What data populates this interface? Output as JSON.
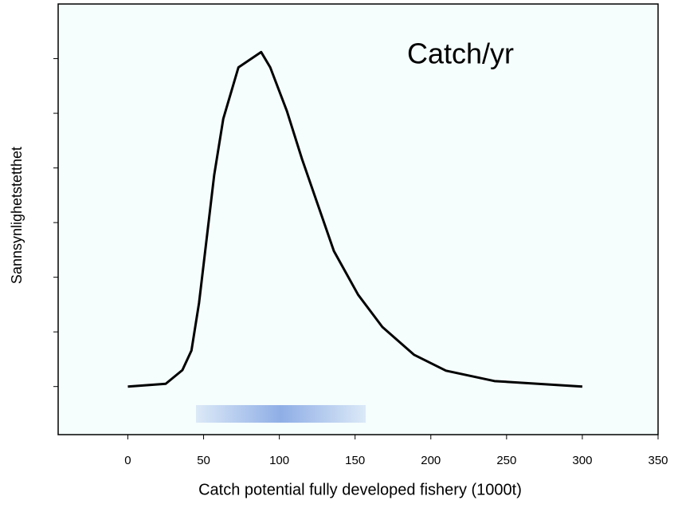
{
  "chart_data": {
    "type": "line",
    "annotation": "Catch/yr",
    "xlabel": "Catch potential fully developed fishery (1000t)",
    "ylabel": "Sannsynlighetstetthet",
    "x": [
      0,
      25,
      36,
      42,
      47,
      52,
      57,
      63,
      73,
      88,
      94,
      105,
      115,
      126,
      136,
      152,
      168,
      189,
      210,
      242,
      300
    ],
    "values": [
      0,
      0.05,
      0.3,
      0.66,
      1.53,
      2.7,
      3.87,
      4.9,
      5.84,
      6.12,
      5.84,
      5.04,
      4.16,
      3.28,
      2.48,
      1.68,
      1.09,
      0.58,
      0.29,
      0.1,
      0
    ],
    "color": "#000000",
    "interval": {
      "x": [
        45,
        157
      ],
      "color": "#8faee6"
    },
    "xlim": [
      -46,
      350
    ],
    "xticks": [
      0,
      50,
      100,
      150,
      200,
      250,
      300,
      350
    ],
    "ylim": [
      -0.88,
      7
    ],
    "yticks": [
      0,
      1,
      2,
      3,
      4,
      5,
      6
    ],
    "background": "#f5fdfd"
  }
}
